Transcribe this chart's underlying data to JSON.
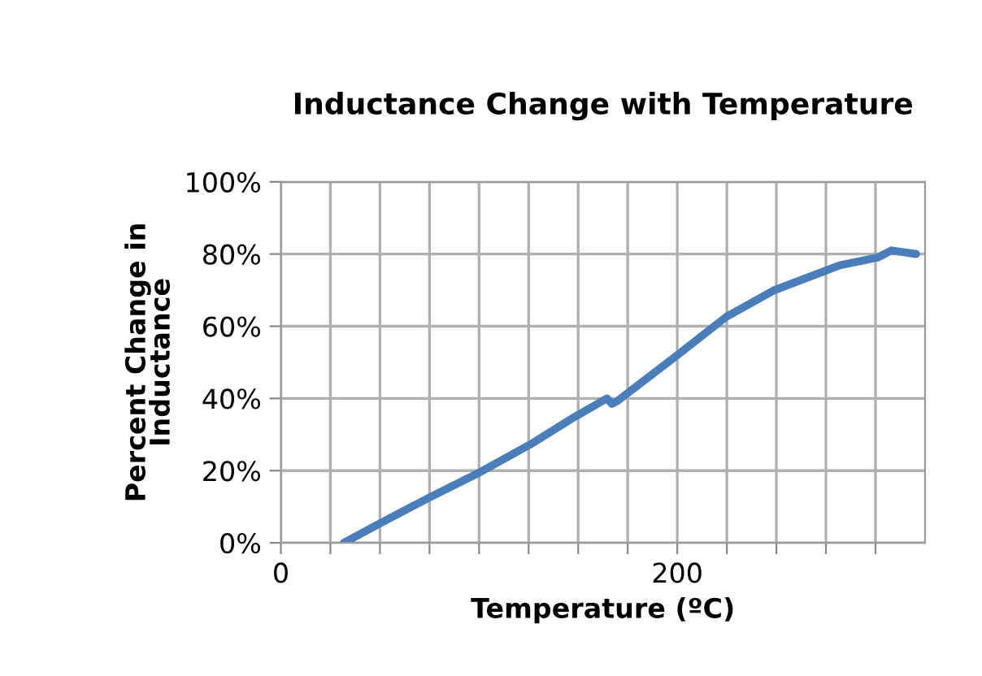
{
  "chart_data": {
    "type": "line",
    "title": "Inductance Change with Temperature",
    "xlabel": "Temperature (ºC)",
    "ylabel": "Percent Change in\nInductance",
    "series": [
      {
        "color": "#4a7ebb",
        "x": [
          31.8,
          48,
          74,
          98.5,
          126,
          148,
          164.5,
          167,
          169.8,
          200,
          224.7,
          249,
          282,
          301,
          308,
          320.5
        ],
        "values": [
          0,
          4.8,
          12.3,
          19,
          27.3,
          34.8,
          40,
          38.5,
          39.3,
          52,
          62.6,
          70,
          76.9,
          79,
          81,
          80
        ]
      }
    ],
    "xlim": [
      0,
      325
    ],
    "xticks": [
      0,
      {
        "value": 25,
        "label": null
      },
      {
        "value": 50,
        "label": null
      },
      {
        "value": 75,
        "label": null
      },
      {
        "value": 100,
        "label": null
      },
      {
        "value": 125,
        "label": null
      },
      {
        "value": 150,
        "label": null
      },
      {
        "value": 175,
        "label": null
      },
      200,
      {
        "value": 225,
        "label": null
      },
      {
        "value": 250,
        "label": null
      },
      {
        "value": 275,
        "label": null
      },
      {
        "value": 300,
        "label": null
      }
    ],
    "ylim": [
      0,
      100
    ],
    "yticks": [
      {
        "value": 0,
        "label": "0%"
      },
      {
        "value": 20,
        "label": "20%"
      },
      {
        "value": 40,
        "label": "40%"
      },
      {
        "value": 60,
        "label": "60%"
      },
      {
        "value": 80,
        "label": "80%"
      },
      {
        "value": 100,
        "label": "100%"
      }
    ],
    "grid": true,
    "marker": "none",
    "line_style": "solid",
    "legend": false
  }
}
